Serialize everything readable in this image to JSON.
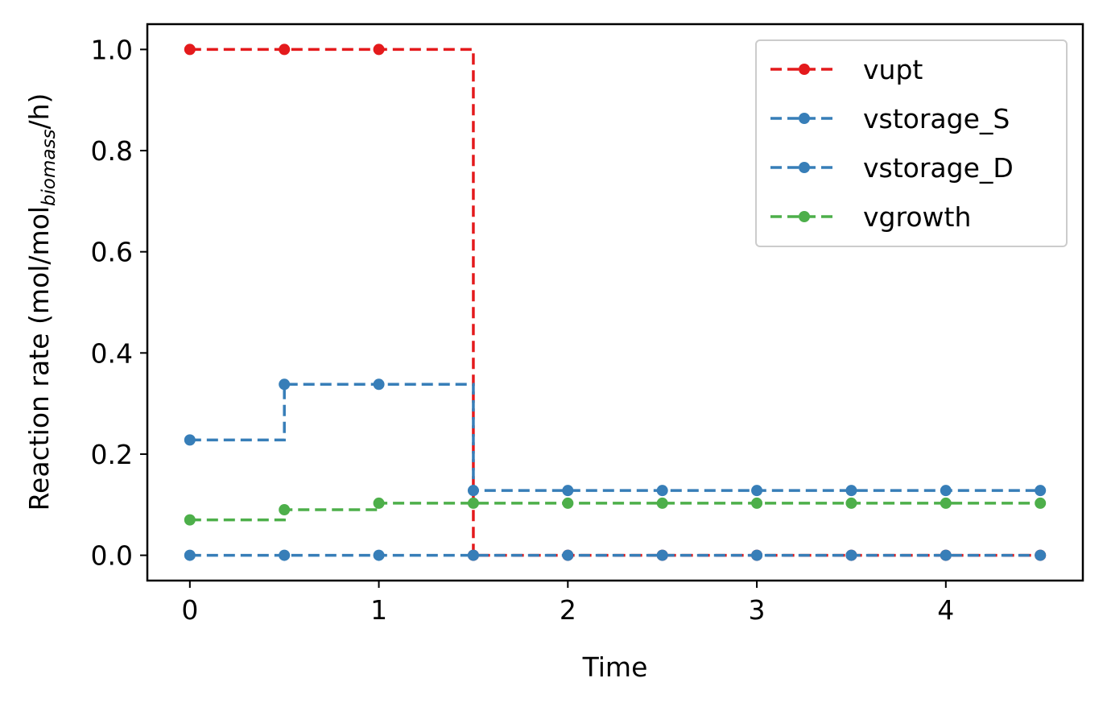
{
  "chart_data": {
    "type": "line",
    "xlabel": "Time",
    "ylabel": {
      "prefix": "Reaction rate (mol/mol",
      "subscript": "biomass",
      "suffix": "/h)"
    },
    "xlim": [
      -0.225,
      4.725
    ],
    "ylim": [
      -0.05,
      1.05
    ],
    "xticks": [
      0,
      1,
      2,
      3,
      4
    ],
    "yticks": [
      0.0,
      0.2,
      0.4,
      0.6,
      0.8,
      1.0
    ],
    "ytick_labels": [
      "0.0",
      "0.2",
      "0.4",
      "0.6",
      "0.8",
      "1.0"
    ],
    "xtick_labels": [
      "0",
      "1",
      "2",
      "3",
      "4"
    ],
    "grid": false,
    "legend_position": "top-right",
    "line_style": "dashed, step-post with markers",
    "series": [
      {
        "name": "vupt",
        "color": "#e41a1c",
        "x": [
          0,
          0.5,
          1.0,
          1.5,
          2.0,
          2.5,
          3.0,
          3.5,
          4.0,
          4.5
        ],
        "y": [
          1.0,
          1.0,
          1.0,
          0.0,
          0.0,
          0.0,
          0.0,
          0.0,
          0.0,
          0.0
        ]
      },
      {
        "name": "vstorage_S",
        "color": "#377eb8",
        "x": [
          0,
          0.5,
          1.0,
          1.5,
          2.0,
          2.5,
          3.0,
          3.5,
          4.0,
          4.5
        ],
        "y": [
          0.0,
          0.0,
          0.0,
          0.0,
          0.0,
          0.0,
          0.0,
          0.0,
          0.0,
          0.0
        ]
      },
      {
        "name": "vstorage_D",
        "color": "#377eb8",
        "x": [
          0,
          0.5,
          1.0,
          1.5,
          2.0,
          2.5,
          3.0,
          3.5,
          4.0,
          4.5
        ],
        "y": [
          0.228,
          0.338,
          0.338,
          0.128,
          0.128,
          0.128,
          0.128,
          0.128,
          0.128,
          0.128
        ]
      },
      {
        "name": "vgrowth",
        "color": "#4daf4a",
        "x": [
          0,
          0.5,
          1.0,
          1.5,
          2.0,
          2.5,
          3.0,
          3.5,
          4.0,
          4.5
        ],
        "y": [
          0.07,
          0.09,
          0.103,
          0.103,
          0.103,
          0.103,
          0.103,
          0.103,
          0.103,
          0.103
        ]
      }
    ]
  }
}
